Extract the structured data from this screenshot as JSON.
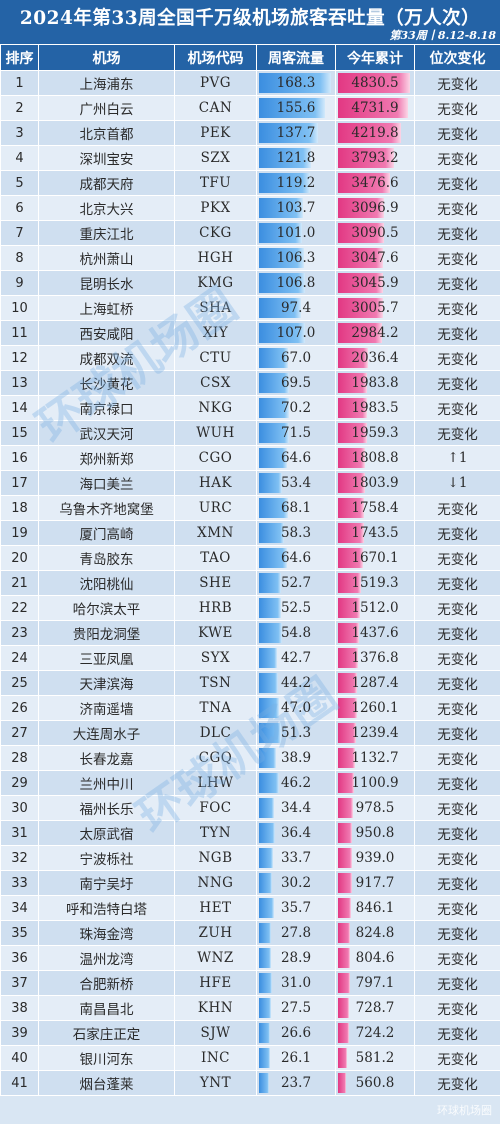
{
  "watermark": {
    "text": "环球机场圈",
    "corner": "环球机场圈"
  },
  "chart_data": {
    "type": "table",
    "title": "2024年第33周全国千万级机场旅客吞吐量（万人次）",
    "subtitle": "第33周丨8.12-8.18",
    "columns": [
      "排序",
      "机场",
      "机场代码",
      "周客流量",
      "今年累计",
      "位次变化"
    ],
    "weekly_max": 168.3,
    "ytd_max": 4830.5,
    "rows": [
      {
        "rank": "1",
        "airport": "上海浦东",
        "code": "PVG",
        "weekly": 168.3,
        "ytd": 4830.5,
        "change": "无变化"
      },
      {
        "rank": "2",
        "airport": "广州白云",
        "code": "CAN",
        "weekly": 155.6,
        "ytd": 4731.9,
        "change": "无变化"
      },
      {
        "rank": "3",
        "airport": "北京首都",
        "code": "PEK",
        "weekly": 137.7,
        "ytd": 4219.8,
        "change": "无变化"
      },
      {
        "rank": "4",
        "airport": "深圳宝安",
        "code": "SZX",
        "weekly": 121.8,
        "ytd": 3793.2,
        "change": "无变化"
      },
      {
        "rank": "5",
        "airport": "成都天府",
        "code": "TFU",
        "weekly": 119.2,
        "ytd": 3476.6,
        "change": "无变化"
      },
      {
        "rank": "6",
        "airport": "北京大兴",
        "code": "PKX",
        "weekly": 103.7,
        "ytd": 3096.9,
        "change": "无变化"
      },
      {
        "rank": "7",
        "airport": "重庆江北",
        "code": "CKG",
        "weekly": 101.0,
        "ytd": 3090.5,
        "change": "无变化"
      },
      {
        "rank": "8",
        "airport": "杭州萧山",
        "code": "HGH",
        "weekly": 106.3,
        "ytd": 3047.6,
        "change": "无变化"
      },
      {
        "rank": "9",
        "airport": "昆明长水",
        "code": "KMG",
        "weekly": 106.8,
        "ytd": 3045.9,
        "change": "无变化"
      },
      {
        "rank": "10",
        "airport": "上海虹桥",
        "code": "SHA",
        "weekly": 97.4,
        "ytd": 3005.7,
        "change": "无变化"
      },
      {
        "rank": "11",
        "airport": "西安咸阳",
        "code": "XIY",
        "weekly": 107.0,
        "ytd": 2984.2,
        "change": "无变化"
      },
      {
        "rank": "12",
        "airport": "成都双流",
        "code": "CTU",
        "weekly": 67.0,
        "ytd": 2036.4,
        "change": "无变化"
      },
      {
        "rank": "13",
        "airport": "长沙黄花",
        "code": "CSX",
        "weekly": 69.5,
        "ytd": 1983.8,
        "change": "无变化"
      },
      {
        "rank": "14",
        "airport": "南京禄口",
        "code": "NKG",
        "weekly": 70.2,
        "ytd": 1983.5,
        "change": "无变化"
      },
      {
        "rank": "15",
        "airport": "武汉天河",
        "code": "WUH",
        "weekly": 71.5,
        "ytd": 1959.3,
        "change": "无变化"
      },
      {
        "rank": "16",
        "airport": "郑州新郑",
        "code": "CGO",
        "weekly": 64.6,
        "ytd": 1808.8,
        "change": "↑1"
      },
      {
        "rank": "17",
        "airport": "海口美兰",
        "code": "HAK",
        "weekly": 53.4,
        "ytd": 1803.9,
        "change": "↓1"
      },
      {
        "rank": "18",
        "airport": "乌鲁木齐地窝堡",
        "code": "URC",
        "weekly": 68.1,
        "ytd": 1758.4,
        "change": "无变化"
      },
      {
        "rank": "19",
        "airport": "厦门高崎",
        "code": "XMN",
        "weekly": 58.3,
        "ytd": 1743.5,
        "change": "无变化"
      },
      {
        "rank": "20",
        "airport": "青岛胶东",
        "code": "TAO",
        "weekly": 64.6,
        "ytd": 1670.1,
        "change": "无变化"
      },
      {
        "rank": "21",
        "airport": "沈阳桃仙",
        "code": "SHE",
        "weekly": 52.7,
        "ytd": 1519.3,
        "change": "无变化"
      },
      {
        "rank": "22",
        "airport": "哈尔滨太平",
        "code": "HRB",
        "weekly": 52.5,
        "ytd": 1512.0,
        "change": "无变化"
      },
      {
        "rank": "23",
        "airport": "贵阳龙洞堡",
        "code": "KWE",
        "weekly": 54.8,
        "ytd": 1437.6,
        "change": "无变化"
      },
      {
        "rank": "24",
        "airport": "三亚凤凰",
        "code": "SYX",
        "weekly": 42.7,
        "ytd": 1376.8,
        "change": "无变化"
      },
      {
        "rank": "25",
        "airport": "天津滨海",
        "code": "TSN",
        "weekly": 44.2,
        "ytd": 1287.4,
        "change": "无变化"
      },
      {
        "rank": "26",
        "airport": "济南遥墙",
        "code": "TNA",
        "weekly": 47.0,
        "ytd": 1260.1,
        "change": "无变化"
      },
      {
        "rank": "27",
        "airport": "大连周水子",
        "code": "DLC",
        "weekly": 51.3,
        "ytd": 1239.4,
        "change": "无变化"
      },
      {
        "rank": "28",
        "airport": "长春龙嘉",
        "code": "CGQ",
        "weekly": 38.9,
        "ytd": 1132.7,
        "change": "无变化"
      },
      {
        "rank": "29",
        "airport": "兰州中川",
        "code": "LHW",
        "weekly": 46.2,
        "ytd": 1100.9,
        "change": "无变化"
      },
      {
        "rank": "30",
        "airport": "福州长乐",
        "code": "FOC",
        "weekly": 34.4,
        "ytd": 978.5,
        "change": "无变化"
      },
      {
        "rank": "31",
        "airport": "太原武宿",
        "code": "TYN",
        "weekly": 36.4,
        "ytd": 950.8,
        "change": "无变化"
      },
      {
        "rank": "32",
        "airport": "宁波栎社",
        "code": "NGB",
        "weekly": 33.7,
        "ytd": 939.0,
        "change": "无变化"
      },
      {
        "rank": "33",
        "airport": "南宁吴圩",
        "code": "NNG",
        "weekly": 30.2,
        "ytd": 917.7,
        "change": "无变化"
      },
      {
        "rank": "34",
        "airport": "呼和浩特白塔",
        "code": "HET",
        "weekly": 35.7,
        "ytd": 846.1,
        "change": "无变化"
      },
      {
        "rank": "35",
        "airport": "珠海金湾",
        "code": "ZUH",
        "weekly": 27.8,
        "ytd": 824.8,
        "change": "无变化"
      },
      {
        "rank": "36",
        "airport": "温州龙湾",
        "code": "WNZ",
        "weekly": 28.9,
        "ytd": 804.6,
        "change": "无变化"
      },
      {
        "rank": "37",
        "airport": "合肥新桥",
        "code": "HFE",
        "weekly": 31.0,
        "ytd": 797.1,
        "change": "无变化"
      },
      {
        "rank": "38",
        "airport": "南昌昌北",
        "code": "KHN",
        "weekly": 27.5,
        "ytd": 728.7,
        "change": "无变化"
      },
      {
        "rank": "39",
        "airport": "石家庄正定",
        "code": "SJW",
        "weekly": 26.6,
        "ytd": 724.2,
        "change": "无变化"
      },
      {
        "rank": "40",
        "airport": "银川河东",
        "code": "INC",
        "weekly": 26.1,
        "ytd": 581.2,
        "change": "无变化"
      },
      {
        "rank": "41",
        "airport": "烟台蓬莱",
        "code": "YNT",
        "weekly": 23.7,
        "ytd": 560.8,
        "change": "无变化"
      }
    ]
  }
}
